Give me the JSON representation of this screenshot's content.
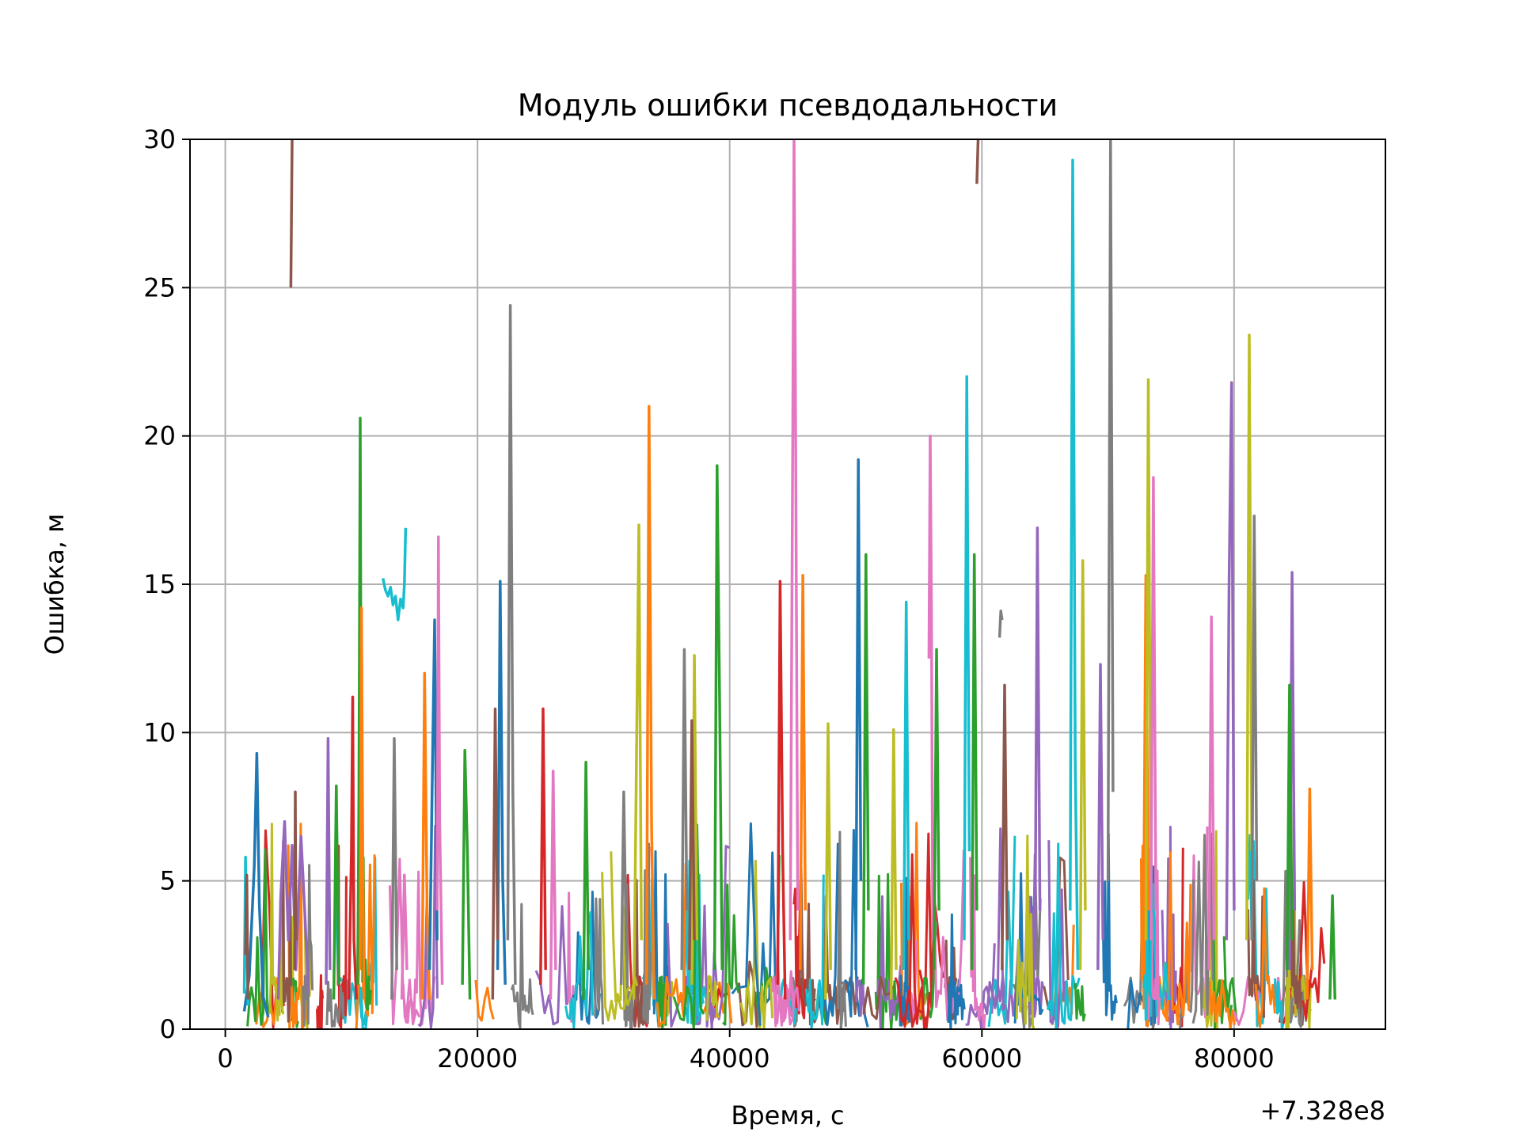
{
  "chart_data": {
    "type": "line",
    "title": "Модуль ошибки псевдодальности",
    "xlabel": "Время, с",
    "ylabel": "Ошибка, м",
    "x_offset_label": "+7.328e8",
    "xlim": [
      -2800,
      92000
    ],
    "ylim": [
      0,
      30
    ],
    "xticks": [
      0,
      20000,
      40000,
      60000,
      80000
    ],
    "xtick_labels": [
      "0",
      "20000",
      "40000",
      "60000",
      "80000"
    ],
    "yticks": [
      0,
      5,
      10,
      15,
      20,
      25,
      30
    ],
    "ytick_labels": [
      "0",
      "5",
      "10",
      "15",
      "20",
      "25",
      "30"
    ],
    "grid": true,
    "legend": "none",
    "palette": [
      "#1f77b4",
      "#ff7f0e",
      "#2ca02c",
      "#d62728",
      "#9467bd",
      "#8c564b",
      "#e377c2",
      "#7f7f7f",
      "#bcbd22",
      "#17becf"
    ],
    "x_data_range": [
      1500,
      88000
    ],
    "series": [
      {
        "color": "#1f77b4",
        "x": [
          1500,
          1900,
          2300,
          2500,
          2700,
          3000,
          3400
        ],
        "y": [
          0.6,
          1.8,
          5.5,
          9.3,
          4.2,
          1.1,
          0.4
        ]
      },
      {
        "color": "#17becf",
        "x": [
          1500,
          1600,
          1700,
          1800
        ],
        "y": [
          1.2,
          5.8,
          3.0,
          0.8
        ]
      },
      {
        "color": "#8c564b",
        "x": [
          1600,
          1700,
          1800
        ],
        "y": [
          2.5,
          5.2,
          1.0
        ]
      },
      {
        "color": "#9467bd",
        "x": [
          4200,
          4400,
          4700,
          5000,
          5300,
          5600,
          6000,
          6300,
          6600
        ],
        "y": [
          1.0,
          4.5,
          7.0,
          3.0,
          6.2,
          2.0,
          6.5,
          4.0,
          1.2
        ]
      },
      {
        "color": "#8c564b",
        "x": [
          5200,
          5300
        ],
        "y": [
          25.0,
          30.0
        ]
      },
      {
        "color": "#8c564b",
        "x": [
          5500,
          5550,
          5600
        ],
        "y": [
          2.0,
          8.0,
          3.0
        ]
      },
      {
        "color": "#9467bd",
        "x": [
          8000,
          8150,
          8300
        ],
        "y": [
          1.5,
          9.8,
          2.0
        ]
      },
      {
        "color": "#2ca02c",
        "x": [
          8600,
          8800,
          9000
        ],
        "y": [
          1.0,
          8.2,
          1.5
        ]
      },
      {
        "color": "#d62728",
        "x": [
          9800,
          10000,
          10100,
          10200,
          10400
        ],
        "y": [
          1.0,
          6.0,
          11.2,
          3.0,
          1.0
        ]
      },
      {
        "color": "#2ca02c",
        "x": [
          10500,
          10600,
          10700,
          10800
        ],
        "y": [
          1.5,
          8.0,
          20.6,
          5.0
        ]
      },
      {
        "color": "#ff7f0e",
        "x": [
          10700,
          10800,
          10900,
          11000
        ],
        "y": [
          2.0,
          14.2,
          6.0,
          1.0
        ]
      },
      {
        "color": "#7f7f7f",
        "x": [
          13200,
          13400,
          13600
        ],
        "y": [
          1.0,
          9.8,
          2.0
        ]
      },
      {
        "color": "#17becf",
        "x": [
          12500,
          12700,
          12900,
          13100,
          13300,
          13500,
          13700,
          13900,
          14100,
          14200,
          14300
        ],
        "y": [
          15.2,
          14.8,
          14.6,
          14.9,
          14.3,
          14.6,
          13.8,
          14.5,
          14.2,
          15.0,
          16.9
        ]
      },
      {
        "color": "#e377c2",
        "x": [
          14000,
          14200,
          14400
        ],
        "y": [
          1.0,
          5.2,
          2.0
        ]
      },
      {
        "color": "#ff7f0e",
        "x": [
          15600,
          15800,
          16000,
          16200
        ],
        "y": [
          1.0,
          12.0,
          4.0,
          1.0
        ]
      },
      {
        "color": "#1f77b4",
        "x": [
          16200,
          16400,
          16600,
          16800
        ],
        "y": [
          2.0,
          8.0,
          13.8,
          3.0
        ]
      },
      {
        "color": "#e377c2",
        "x": [
          16800,
          16900,
          17000,
          17200
        ],
        "y": [
          4.0,
          16.6,
          7.0,
          1.5
        ]
      },
      {
        "color": "#2ca02c",
        "x": [
          18800,
          19000,
          19200,
          19400
        ],
        "y": [
          1.5,
          9.4,
          6.0,
          1.0
        ]
      },
      {
        "color": "#1f77b4",
        "x": [
          21600,
          21800,
          22000,
          22200
        ],
        "y": [
          2.0,
          15.1,
          5.0,
          1.5
        ]
      },
      {
        "color": "#8c564b",
        "x": [
          21200,
          21400,
          21600
        ],
        "y": [
          1.0,
          10.8,
          3.0
        ]
      },
      {
        "color": "#7f7f7f",
        "x": [
          22400,
          22600,
          22800,
          23000
        ],
        "y": [
          3.0,
          24.4,
          8.0,
          1.5
        ]
      },
      {
        "color": "#d62728",
        "x": [
          25000,
          25200,
          25400
        ],
        "y": [
          1.5,
          10.8,
          2.0
        ]
      },
      {
        "color": "#e377c2",
        "x": [
          25800,
          26000,
          26200
        ],
        "y": [
          1.0,
          8.7,
          2.0
        ]
      },
      {
        "color": "#2ca02c",
        "x": [
          28400,
          28600,
          28800
        ],
        "y": [
          1.0,
          9.0,
          2.0
        ]
      },
      {
        "color": "#7f7f7f",
        "x": [
          31400,
          31600,
          31800
        ],
        "y": [
          1.5,
          8.0,
          2.5
        ]
      },
      {
        "color": "#bcbd22",
        "x": [
          32400,
          32600,
          32800,
          33000
        ],
        "y": [
          1.0,
          9.0,
          17.0,
          3.0
        ]
      },
      {
        "color": "#ff7f0e",
        "x": [
          33400,
          33600,
          33800,
          34000
        ],
        "y": [
          1.5,
          21.0,
          7.0,
          1.0
        ]
      },
      {
        "color": "#7f7f7f",
        "x": [
          36200,
          36400,
          36600
        ],
        "y": [
          2.0,
          12.8,
          4.0
        ]
      },
      {
        "color": "#bcbd22",
        "x": [
          37000,
          37200,
          37400
        ],
        "y": [
          1.5,
          12.6,
          3.0
        ]
      },
      {
        "color": "#8c564b",
        "x": [
          36800,
          37000,
          37200
        ],
        "y": [
          2.0,
          10.4,
          3.0
        ]
      },
      {
        "color": "#2ca02c",
        "x": [
          38800,
          39000,
          39200,
          39400
        ],
        "y": [
          2.0,
          19.0,
          11.0,
          2.0
        ]
      },
      {
        "color": "#d62728",
        "x": [
          43800,
          44000,
          44200,
          44400
        ],
        "y": [
          1.5,
          15.1,
          6.0,
          1.0
        ]
      },
      {
        "color": "#e377c2",
        "x": [
          44800,
          45000,
          45100,
          45200,
          45400
        ],
        "y": [
          3.0,
          20.2,
          30.0,
          22.5,
          4.0
        ]
      },
      {
        "color": "#ff7f0e",
        "x": [
          45600,
          45800,
          46000
        ],
        "y": [
          2.0,
          15.3,
          4.0
        ]
      },
      {
        "color": "#bcbd22",
        "x": [
          47600,
          47800,
          48000
        ],
        "y": [
          1.0,
          10.3,
          2.0
        ]
      },
      {
        "color": "#1f77b4",
        "x": [
          50000,
          50200,
          50400
        ],
        "y": [
          2.0,
          19.2,
          5.0
        ]
      },
      {
        "color": "#2ca02c",
        "x": [
          50600,
          50800,
          51000
        ],
        "y": [
          1.5,
          16.0,
          4.0
        ]
      },
      {
        "color": "#bcbd22",
        "x": [
          52800,
          53000,
          53200
        ],
        "y": [
          1.0,
          10.1,
          2.0
        ]
      },
      {
        "color": "#17becf",
        "x": [
          53800,
          54000,
          54200
        ],
        "y": [
          2.0,
          14.4,
          3.0
        ]
      },
      {
        "color": "#e377c2",
        "x": [
          55800,
          55900,
          56000,
          56100
        ],
        "y": [
          12.5,
          20.0,
          14.0,
          3.0
        ]
      },
      {
        "color": "#2ca02c",
        "x": [
          56200,
          56400,
          56600
        ],
        "y": [
          2.0,
          12.8,
          4.0
        ]
      },
      {
        "color": "#17becf",
        "x": [
          58600,
          58800,
          59000
        ],
        "y": [
          3.0,
          22.0,
          6.0
        ]
      },
      {
        "color": "#2ca02c",
        "x": [
          59200,
          59400,
          59600
        ],
        "y": [
          2.0,
          16.0,
          4.0
        ]
      },
      {
        "color": "#8c564b",
        "x": [
          59600,
          59700
        ],
        "y": [
          28.5,
          30.0
        ]
      },
      {
        "color": "#7f7f7f",
        "x": [
          61400,
          61500,
          61600
        ],
        "y": [
          13.2,
          14.1,
          13.8
        ]
      },
      {
        "color": "#8c564b",
        "x": [
          61600,
          61800,
          62000
        ],
        "y": [
          2.0,
          11.6,
          3.0
        ]
      },
      {
        "color": "#9467bd",
        "x": [
          64200,
          64400,
          64600
        ],
        "y": [
          2.0,
          16.9,
          4.0
        ]
      },
      {
        "color": "#17becf",
        "x": [
          67000,
          67200,
          67400,
          67600
        ],
        "y": [
          4.0,
          29.3,
          9.0,
          2.0
        ]
      },
      {
        "color": "#bcbd22",
        "x": [
          67800,
          68000,
          68200
        ],
        "y": [
          2.0,
          15.8,
          4.0
        ]
      },
      {
        "color": "#9467bd",
        "x": [
          69200,
          69400,
          69600
        ],
        "y": [
          2.0,
          12.3,
          3.0
        ]
      },
      {
        "color": "#7f7f7f",
        "x": [
          70000,
          70200,
          70400
        ],
        "y": [
          5.0,
          30.0,
          8.0
        ]
      },
      {
        "color": "#ff7f0e",
        "x": [
          72800,
          73000,
          73200
        ],
        "y": [
          2.0,
          15.3,
          4.0
        ]
      },
      {
        "color": "#bcbd22",
        "x": [
          73000,
          73200,
          73400
        ],
        "y": [
          3.0,
          21.9,
          5.0
        ]
      },
      {
        "color": "#e377c2",
        "x": [
          73400,
          73600,
          73800
        ],
        "y": [
          3.0,
          18.6,
          4.0
        ]
      },
      {
        "color": "#e377c2",
        "x": [
          78000,
          78200,
          78400
        ],
        "y": [
          2.0,
          13.9,
          3.0
        ]
      },
      {
        "color": "#9467bd",
        "x": [
          79400,
          79600,
          79800,
          80000
        ],
        "y": [
          3.0,
          15.0,
          21.8,
          4.0
        ]
      },
      {
        "color": "#bcbd22",
        "x": [
          81000,
          81200,
          81400
        ],
        "y": [
          3.0,
          23.4,
          6.0
        ]
      },
      {
        "color": "#7f7f7f",
        "x": [
          81400,
          81600,
          81800
        ],
        "y": [
          3.0,
          17.3,
          5.0
        ]
      },
      {
        "color": "#9467bd",
        "x": [
          84400,
          84600,
          84800
        ],
        "y": [
          2.0,
          15.4,
          4.0
        ]
      },
      {
        "color": "#2ca02c",
        "x": [
          84200,
          84400,
          84600
        ],
        "y": [
          2.0,
          11.6,
          3.0
        ]
      },
      {
        "color": "#ff7f0e",
        "x": [
          85800,
          86000,
          86200
        ],
        "y": [
          1.0,
          8.1,
          2.0
        ]
      },
      {
        "color": "#2ca02c",
        "x": [
          87600,
          87800,
          88000
        ],
        "y": [
          1.0,
          4.5,
          1.0
        ]
      }
    ]
  }
}
